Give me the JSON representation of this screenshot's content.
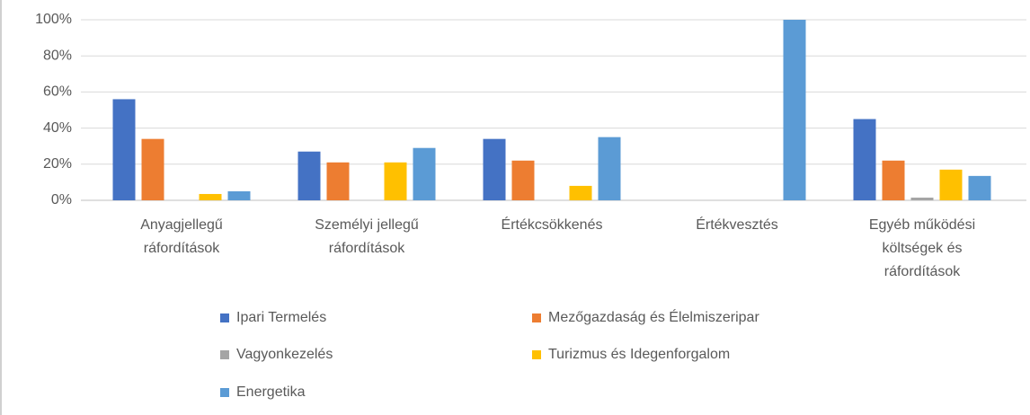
{
  "chart_data": {
    "type": "bar",
    "categories": [
      "Anyagjellegű ráfordítások",
      "Személyi jellegű ráfordítások",
      "Értékcsökkenés",
      "Értékvesztés",
      "Egyéb működési költségek és ráfordítások"
    ],
    "series": [
      {
        "name": "Ipari Termelés",
        "color": "#4472c4",
        "values": [
          56,
          27,
          34,
          0,
          45
        ]
      },
      {
        "name": "Mezőgazdaság és Élelmiszeripar",
        "color": "#ed7d31",
        "values": [
          34,
          21,
          22,
          0,
          22
        ]
      },
      {
        "name": "Vagyonkezelés",
        "color": "#a5a5a5",
        "values": [
          0,
          0,
          0,
          0,
          1.5
        ]
      },
      {
        "name": "Turizmus és Idegenforgalom",
        "color": "#ffc000",
        "values": [
          3.5,
          21,
          8,
          0,
          17
        ]
      },
      {
        "name": "Energetika",
        "color": "#5b9bd5",
        "values": [
          5,
          29,
          35,
          100,
          13.5
        ]
      }
    ],
    "ylim": [
      0,
      100
    ],
    "yticks": [
      {
        "value": 0,
        "label": "0%"
      },
      {
        "value": 20,
        "label": "20%"
      },
      {
        "value": 40,
        "label": "40%"
      },
      {
        "value": 60,
        "label": "60%"
      },
      {
        "value": 80,
        "label": "80%"
      },
      {
        "value": 100,
        "label": "100%"
      }
    ],
    "grid": true,
    "legend": "bottom"
  }
}
